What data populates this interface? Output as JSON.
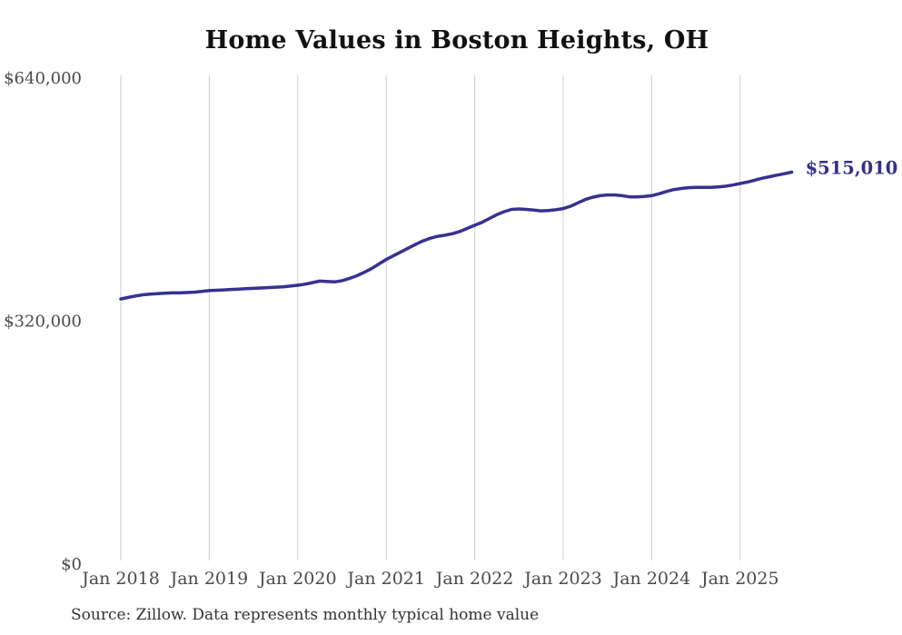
{
  "chart": {
    "title": "Home Values in Boston Heights, OH",
    "source_note": "Source: Zillow. Data represents monthly typical home value",
    "latest_value_label": "$515,010"
  },
  "colors": {
    "line": "#373190",
    "end_label": "#333088",
    "gridline": "#cccccc",
    "tick_label": "#4a4a4a",
    "title": "#111111",
    "source": "#333333",
    "background": "#ffffff"
  },
  "chart_data": {
    "type": "line",
    "title": "Home Values in Boston Heights, OH",
    "xlabel": "",
    "ylabel": "",
    "ylim": [
      0,
      640000
    ],
    "grid": "vertical-gridlines-only",
    "legend_position": "none",
    "y_tick_values": [
      0,
      320000,
      640000
    ],
    "y_tick_labels": [
      "$0",
      "$320,000",
      "$640,000"
    ],
    "x_tick_labels": [
      "Jan 2018",
      "Jan 2019",
      "Jan 2020",
      "Jan 2021",
      "Jan 2022",
      "Jan 2023",
      "Jan 2024",
      "Jan 2025"
    ],
    "end_label": "$515,010",
    "series": [
      {
        "name": "Monthly typical home value",
        "x": [
          "Jan 2018",
          "Feb 2018",
          "Mar 2018",
          "Apr 2018",
          "May 2018",
          "Jun 2018",
          "Jul 2018",
          "Aug 2018",
          "Sep 2018",
          "Oct 2018",
          "Nov 2018",
          "Dec 2018",
          "Jan 2019",
          "Feb 2019",
          "Mar 2019",
          "Apr 2019",
          "May 2019",
          "Jun 2019",
          "Jul 2019",
          "Aug 2019",
          "Sep 2019",
          "Oct 2019",
          "Nov 2019",
          "Dec 2019",
          "Jan 2020",
          "Feb 2020",
          "Mar 2020",
          "Apr 2020",
          "May 2020",
          "Jun 2020",
          "Jul 2020",
          "Aug 2020",
          "Sep 2020",
          "Oct 2020",
          "Nov 2020",
          "Dec 2020",
          "Jan 2021",
          "Feb 2021",
          "Mar 2021",
          "Apr 2021",
          "May 2021",
          "Jun 2021",
          "Jul 2021",
          "Aug 2021",
          "Sep 2021",
          "Oct 2021",
          "Nov 2021",
          "Dec 2021",
          "Jan 2022",
          "Feb 2022",
          "Mar 2022",
          "Apr 2022",
          "May 2022",
          "Jun 2022",
          "Jul 2022",
          "Aug 2022",
          "Sep 2022",
          "Oct 2022",
          "Nov 2022",
          "Dec 2022",
          "Jan 2023",
          "Feb 2023",
          "Mar 2023",
          "Apr 2023",
          "May 2023",
          "Jun 2023",
          "Jul 2023",
          "Aug 2023",
          "Sep 2023",
          "Oct 2023",
          "Nov 2023",
          "Dec 2023",
          "Jan 2024",
          "Feb 2024",
          "Mar 2024",
          "Apr 2024",
          "May 2024",
          "Jun 2024",
          "Jul 2024",
          "Aug 2024",
          "Sep 2024",
          "Oct 2024",
          "Nov 2024",
          "Dec 2024",
          "Jan 2025",
          "Feb 2025",
          "Mar 2025",
          "Apr 2025",
          "May 2025",
          "Jun 2025",
          "Jul 2025",
          "Aug 2025"
        ],
        "values": [
          348000,
          350000,
          352000,
          353500,
          354500,
          355000,
          355500,
          356000,
          356000,
          356500,
          357000,
          358000,
          359000,
          359500,
          360000,
          360500,
          361000,
          361500,
          362000,
          362500,
          363000,
          363500,
          364000,
          365000,
          366000,
          367500,
          369500,
          371500,
          371000,
          370500,
          372000,
          375000,
          378500,
          383000,
          388000,
          394000,
          400000,
          405000,
          410000,
          415000,
          420000,
          424500,
          428000,
          430500,
          432000,
          434000,
          437000,
          441000,
          445000,
          449000,
          454000,
          459000,
          463000,
          466000,
          466500,
          466000,
          465000,
          464000,
          464500,
          465500,
          467000,
          470000,
          474500,
          479000,
          482000,
          484000,
          485000,
          485000,
          484000,
          482500,
          482500,
          483000,
          484000,
          486500,
          489500,
          492000,
          493500,
          494500,
          495000,
          495000,
          495000,
          495500,
          496500,
          498000,
          500000,
          502000,
          504500,
          507000,
          509000,
          511000,
          513000,
          515010
        ]
      }
    ]
  }
}
